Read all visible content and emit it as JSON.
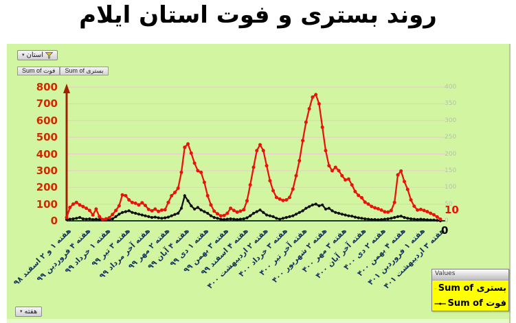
{
  "title": "روند بستری و فوت استان ایلام",
  "pivot_controls": {
    "filter_button_label": "استان",
    "value_field_buttons": [
      "Sum of فوت",
      "Sum of بستری"
    ],
    "axis_field_button_label": "هفته"
  },
  "legend": {
    "header": "Values",
    "entries": [
      {
        "label": "Sum of بستری",
        "color": "#e8140a"
      },
      {
        "label": "Sum of فوت",
        "color": "#111111"
      }
    ]
  },
  "end_labels": {
    "hospitalized": "10",
    "deaths": "0"
  },
  "chart_data": {
    "type": "line",
    "title": "روند بستری و فوت استان ایلام",
    "background": "#d2f5a2",
    "grid": true,
    "grid_color": "#e8caca",
    "axis_arrow_color": "#a02000",
    "x_axis_line_color": "#143d22",
    "legend_position": "bottom-right",
    "x_label_color": "#17365d",
    "label_every": 6,
    "primary_axis": {
      "min": 0,
      "max": 800,
      "step": 100,
      "color": "#cc2b00",
      "side": "left"
    },
    "secondary_axis": {
      "min": 0,
      "max": 400,
      "step": 50,
      "color": "#b9beae",
      "side": "right"
    },
    "x_tick_labels": [
      "هفته ۱ و ۲ اسفند ۹۸",
      "هفته ۴ فروردین ۹۹",
      "هفته ۱ خرداد ۹۹",
      "هفته ۳ تیر ۹۹",
      "هفته آخر مرداد ۹۹",
      "هفته ۲ مهر ۹۹",
      "هفته ۴ آبان ۹۹",
      "هفته ۱ دی ۹۹",
      "هفته ۳ بهمن ۹۹",
      "هفته ۴ اسفند ۹۹",
      "هفته ۲ اردیبهشت ۴۰۰",
      "هفته ۳ خرداد ۴۰۰",
      "هفته آخر تیر ۴۰۰",
      "هفته ۲ شهریور ۴۰۰",
      "هفته ۳ مهر ۴۰۰",
      "هفته آخر آبان ۴۰۰",
      "هفته ۲ دی ۴۰۰",
      "هفته ۴ بهمن ۴۰۰",
      "هفته ۱ فروردین ۴۰۱",
      "هفته ۳ اردیبهشت ۴۰۱"
    ],
    "series": [
      {
        "name": "Sum of بستری",
        "color": "#e8140a",
        "marker": "circle",
        "values": [
          20,
          80,
          100,
          110,
          95,
          85,
          75,
          62,
          35,
          70,
          25,
          8,
          12,
          18,
          38,
          62,
          90,
          155,
          150,
          125,
          110,
          105,
          95,
          108,
          92,
          68,
          60,
          70,
          56,
          64,
          66,
          110,
          150,
          170,
          195,
          290,
          440,
          460,
          405,
          345,
          300,
          290,
          230,
          150,
          95,
          58,
          42,
          30,
          32,
          45,
          75,
          62,
          52,
          58,
          66,
          120,
          215,
          320,
          420,
          455,
          420,
          330,
          240,
          180,
          140,
          130,
          122,
          125,
          140,
          190,
          270,
          360,
          480,
          590,
          670,
          740,
          755,
          700,
          560,
          420,
          330,
          300,
          320,
          300,
          270,
          245,
          250,
          215,
          175,
          152,
          138,
          112,
          100,
          86,
          78,
          72,
          64,
          54,
          52,
          62,
          110,
          275,
          298,
          235,
          188,
          125,
          88,
          65,
          68,
          62,
          55,
          45,
          36,
          24,
          10
        ]
      },
      {
        "name": "Sum of فوت",
        "color": "#111111",
        "marker": "circle",
        "values": [
          8,
          10,
          12,
          15,
          20,
          12,
          10,
          12,
          8,
          10,
          8,
          5,
          6,
          8,
          12,
          25,
          40,
          50,
          55,
          60,
          50,
          45,
          40,
          35,
          30,
          25,
          20,
          22,
          18,
          15,
          18,
          22,
          30,
          38,
          45,
          75,
          150,
          120,
          90,
          70,
          80,
          65,
          55,
          45,
          30,
          20,
          15,
          10,
          8,
          10,
          12,
          10,
          8,
          10,
          12,
          18,
          30,
          45,
          55,
          65,
          50,
          35,
          30,
          25,
          15,
          10,
          15,
          20,
          25,
          30,
          40,
          50,
          60,
          75,
          85,
          95,
          100,
          90,
          95,
          70,
          75,
          60,
          50,
          45,
          40,
          35,
          30,
          28,
          22,
          18,
          15,
          12,
          10,
          8,
          8,
          6,
          8,
          10,
          12,
          15,
          20,
          25,
          28,
          20,
          15,
          12,
          10,
          8,
          10,
          8,
          6,
          5,
          5,
          3,
          0
        ]
      }
    ]
  }
}
